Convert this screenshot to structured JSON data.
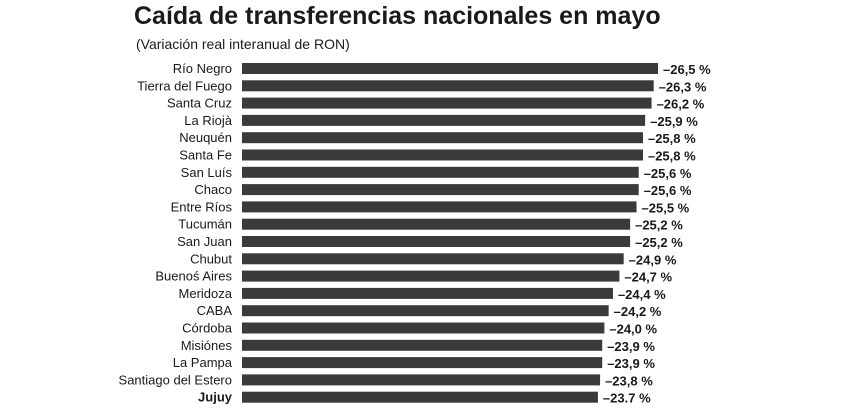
{
  "chart_data": {
    "type": "bar",
    "orientation": "horizontal",
    "title": "Caída de transferencias nacionales en mayo",
    "subtitle": "(Variación real interanual de RON)",
    "categories": [
      "Río Negro",
      "Tierra del Fuego",
      "Santa Cruz",
      "La Riojà",
      "Neuquén",
      "Santa Fe",
      "San Luís",
      "Chaco",
      "Entre Ríos",
      "Tucumán",
      "San Juan",
      "Chubut",
      "Buenoś Aires",
      "Meridoza",
      "CABA",
      "Córdoba",
      "Misiónes",
      "La Pampa",
      "Santiago del Estero",
      "Jujuy"
    ],
    "values": [
      -26.5,
      -26.3,
      -26.2,
      -25.9,
      -25.8,
      -25.8,
      -25.6,
      -25.6,
      -25.5,
      -25.2,
      -25.2,
      -24.9,
      -24.7,
      -24.4,
      -24.2,
      -24.0,
      -23.9,
      -23.9,
      -23.8,
      -23.7
    ],
    "value_labels": [
      "–26,5 %",
      "–26,3 %",
      "–26,2 %",
      "–25,9 %",
      "–25,8 %",
      "–25,8 %",
      "–25,6 %",
      "–25,6 %",
      "–25,5 %",
      "–25,2 %",
      "–25,2 %",
      "–24,9 %",
      "–24,7 %",
      "–24,4 %",
      "–24,2 %",
      "–24,0 %",
      "–23,9 %",
      "–23,9 %",
      "–23,8 %",
      "–23.7 %"
    ],
    "bar_color": "#3a3a3a",
    "grid": false,
    "legend": "none"
  }
}
